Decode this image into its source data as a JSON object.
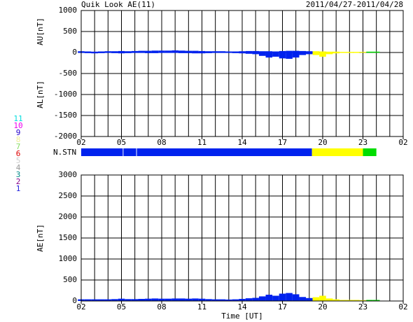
{
  "chart_data": {
    "type": "geomagnetic-index",
    "title": "Quik Look AE(11)",
    "date_range": "2011/04/27-2011/04/28",
    "xlabel": "Time [UT]",
    "station_label": "N.STN",
    "au_label": "AU[nT]",
    "al_label": "AL[nT]",
    "ae_label": "AE[nT]",
    "xlim": [
      0,
      24
    ],
    "xticks": [
      {
        "value": 0,
        "label": "02"
      },
      {
        "value": 3,
        "label": "05"
      },
      {
        "value": 6,
        "label": "08"
      },
      {
        "value": 9,
        "label": "11"
      },
      {
        "value": 12,
        "label": "14"
      },
      {
        "value": 15,
        "label": "17"
      },
      {
        "value": 18,
        "label": "20"
      },
      {
        "value": 21,
        "label": "23"
      },
      {
        "value": 24,
        "label": "02"
      }
    ],
    "xgrid": [
      0,
      1,
      2,
      3,
      4,
      5,
      6,
      7,
      8,
      9,
      10,
      11,
      12,
      13,
      14,
      15,
      16,
      17,
      18,
      19,
      20,
      21,
      22,
      23,
      24
    ],
    "ylim": [
      -2000,
      1000
    ],
    "yticks": [
      -2000,
      -1500,
      -1000,
      -500,
      0,
      500,
      1000
    ],
    "y2lim": [
      0,
      3000
    ],
    "y2ticks": [
      0,
      500,
      1000,
      1500,
      2000,
      2500,
      3000
    ],
    "x": [
      0,
      0.5,
      1,
      1.5,
      2,
      2.5,
      3,
      3.5,
      4,
      4.5,
      5,
      5.5,
      6,
      6.5,
      7,
      7.5,
      8,
      8.5,
      9,
      9.5,
      10,
      10.5,
      11,
      11.5,
      12,
      12.5,
      13,
      13.5,
      14,
      14.5,
      15,
      15.5,
      16,
      16.5,
      17,
      17.5,
      18,
      18.5,
      19,
      19.5,
      20,
      20.5,
      21,
      21.5,
      22
    ],
    "series": [
      {
        "name": "AU",
        "values": [
          30,
          25,
          20,
          25,
          30,
          30,
          35,
          30,
          35,
          40,
          40,
          45,
          45,
          45,
          50,
          45,
          40,
          40,
          35,
          30,
          30,
          30,
          25,
          25,
          30,
          35,
          35,
          30,
          30,
          25,
          35,
          40,
          40,
          35,
          30,
          30,
          25,
          20,
          20,
          15,
          15,
          15,
          15,
          20,
          20
        ]
      },
      {
        "name": "AL",
        "values": [
          -10,
          -15,
          -20,
          -15,
          -10,
          -15,
          -20,
          -15,
          -10,
          -10,
          -15,
          -15,
          -10,
          -10,
          -10,
          -15,
          -15,
          -20,
          -20,
          -15,
          -10,
          -10,
          -10,
          -15,
          -20,
          -30,
          -40,
          -80,
          -120,
          -100,
          -140,
          -150,
          -120,
          -60,
          -40,
          -60,
          -100,
          -40,
          -20,
          -10,
          -10,
          -10,
          -5,
          -5,
          -5
        ]
      },
      {
        "name": "AE",
        "axis": "y2",
        "values": [
          40,
          40,
          40,
          40,
          40,
          45,
          55,
          45,
          45,
          50,
          55,
          60,
          55,
          55,
          60,
          60,
          55,
          60,
          55,
          45,
          40,
          40,
          35,
          40,
          50,
          65,
          75,
          110,
          150,
          125,
          175,
          190,
          160,
          95,
          70,
          90,
          125,
          60,
          40,
          25,
          25,
          25,
          20,
          25,
          25
        ]
      }
    ],
    "station_segments": [
      {
        "start": 0,
        "end": 3.1,
        "color": "#0022ee"
      },
      {
        "start": 3.15,
        "end": 4.1,
        "color": "#0022ee"
      },
      {
        "start": 4.15,
        "end": 17.2,
        "color": "#0022ee"
      },
      {
        "start": 17.2,
        "end": 21,
        "color": "#ffff00"
      },
      {
        "start": 21,
        "end": 22,
        "color": "#00dd00"
      }
    ],
    "station_legend": [
      {
        "label": "11",
        "color": "#00dddd"
      },
      {
        "label": "10",
        "color": "#ee00ee"
      },
      {
        "label": "9",
        "color": "#2200cc"
      },
      {
        "label": "8",
        "color": "#eeee99"
      },
      {
        "label": "7",
        "color": "#88dd66"
      },
      {
        "label": "6",
        "color": "#dd0000"
      },
      {
        "label": "5",
        "color": "#cccccc"
      },
      {
        "label": "4",
        "color": "#999999"
      },
      {
        "label": "3",
        "color": "#008888"
      },
      {
        "label": "2",
        "color": "#880088"
      },
      {
        "label": "1",
        "color": "#2222dd"
      }
    ]
  }
}
